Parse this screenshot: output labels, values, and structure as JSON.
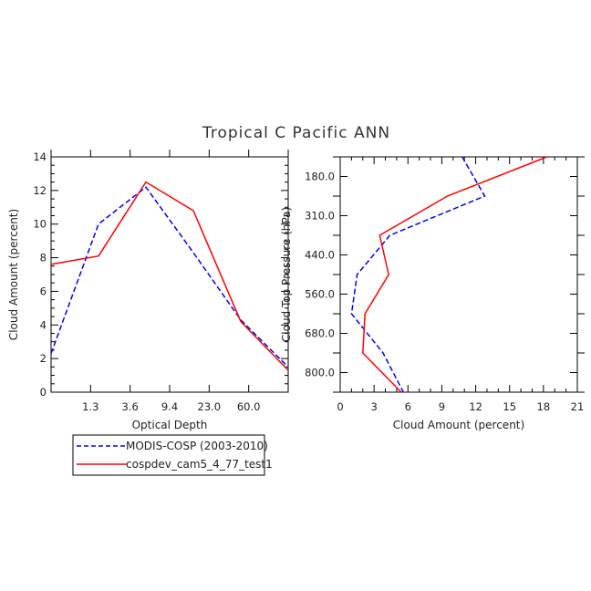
{
  "title": "Tropical C Pacific ANN",
  "colors": {
    "modis": "#0000ff",
    "cam": "#ff0000"
  },
  "legend": {
    "entries": [
      {
        "label": "MODIS-COSP (2003-2010)",
        "color": "#0000ff",
        "dash": "dashed"
      },
      {
        "label": "cospdev_cam5_4_77_test1",
        "color": "#ff0000",
        "dash": "solid"
      }
    ]
  },
  "chart_data": [
    {
      "type": "line",
      "xlabel": "Optical Depth",
      "ylabel": "Cloud Amount (percent)",
      "x_ticklabels": [
        "1.3",
        "3.6",
        "9.4",
        "23.0",
        "60.0"
      ],
      "y_ticks": [
        0,
        2,
        4,
        6,
        8,
        10,
        12,
        14
      ],
      "ylim": [
        0,
        14
      ],
      "grid": false,
      "series": [
        {
          "name": "MODIS-COSP (2003-2010)",
          "style": "dashed",
          "color": "#0000ff",
          "values": [
            2.3,
            10.0,
            12.2,
            8.3,
            4.3,
            1.5
          ]
        },
        {
          "name": "cospdev_cam5_4_77_test1",
          "style": "solid",
          "color": "#ff0000",
          "values": [
            7.6,
            8.1,
            12.5,
            10.8,
            4.2,
            1.3
          ]
        }
      ]
    },
    {
      "type": "line",
      "xlabel": "Cloud Amount (percent)",
      "ylabel": "Cloud Top Pressure (hPa)",
      "x_ticks": [
        0,
        3,
        6,
        9,
        12,
        15,
        18,
        21
      ],
      "x_ticklabels": [
        "0",
        "3",
        "6",
        "9",
        "12",
        "15",
        "18",
        "21"
      ],
      "xlim": [
        0,
        21
      ],
      "y_ticklabels": [
        "180.0",
        "310.0",
        "440.0",
        "560.0",
        "680.0",
        "800.0"
      ],
      "grid": false,
      "series": [
        {
          "name": "MODIS-COSP (2003-2010)",
          "style": "dashed",
          "color": "#0000ff",
          "values": [
            10.8,
            12.8,
            4.4,
            1.5,
            1.0,
            3.8,
            5.6
          ]
        },
        {
          "name": "cospdev_cam5_4_77_test1",
          "style": "solid",
          "color": "#ff0000",
          "values": [
            18.3,
            9.5,
            3.5,
            4.3,
            2.2,
            2.0,
            5.4
          ]
        }
      ]
    }
  ]
}
